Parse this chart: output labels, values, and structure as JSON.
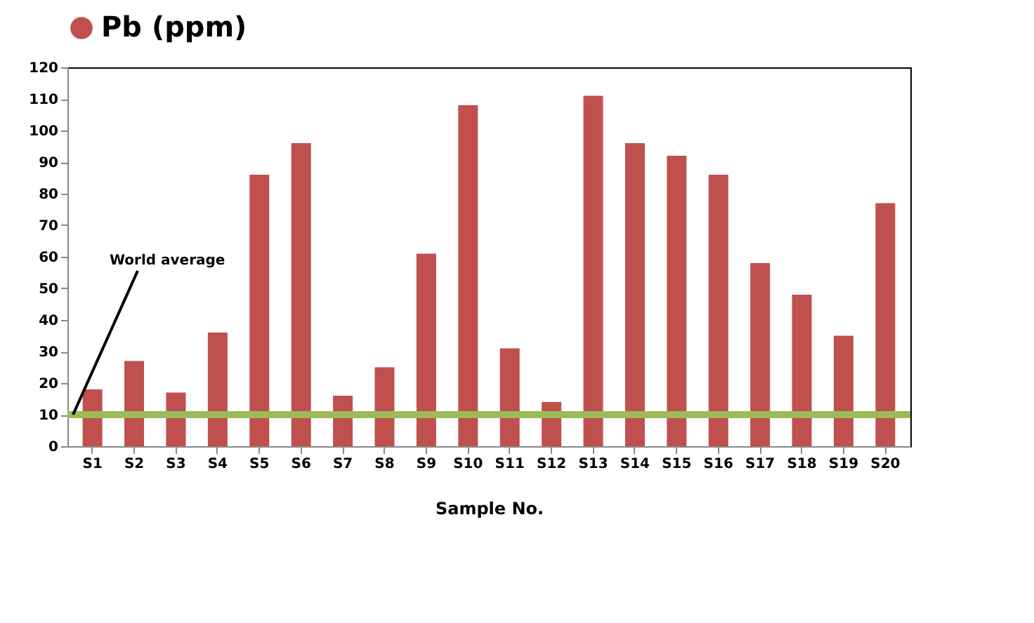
{
  "chart_data": {
    "type": "bar",
    "categories": [
      "S1",
      "S2",
      "S3",
      "S4",
      "S5",
      "S6",
      "S7",
      "S8",
      "S9",
      "S10",
      "S11",
      "S12",
      "S13",
      "S14",
      "S15",
      "S16",
      "S17",
      "S18",
      "S19",
      "S20"
    ],
    "series": [
      {
        "name": "Pb (ppm)",
        "color": "#c0504d",
        "values": [
          18,
          27,
          17,
          36,
          86,
          96,
          16,
          25,
          61,
          108,
          31,
          14,
          111,
          96,
          92,
          86,
          58,
          48,
          35,
          77
        ]
      }
    ],
    "xlabel": "Sample No.",
    "ylim": [
      0,
      120
    ],
    "yticks": [
      0,
      10,
      20,
      30,
      40,
      50,
      60,
      70,
      80,
      90,
      100,
      110,
      120
    ],
    "ref_lines": [
      {
        "axis": "y",
        "value": 10,
        "label": "World average",
        "color": "#9bbb59"
      }
    ],
    "legend": "top",
    "grid": false
  }
}
